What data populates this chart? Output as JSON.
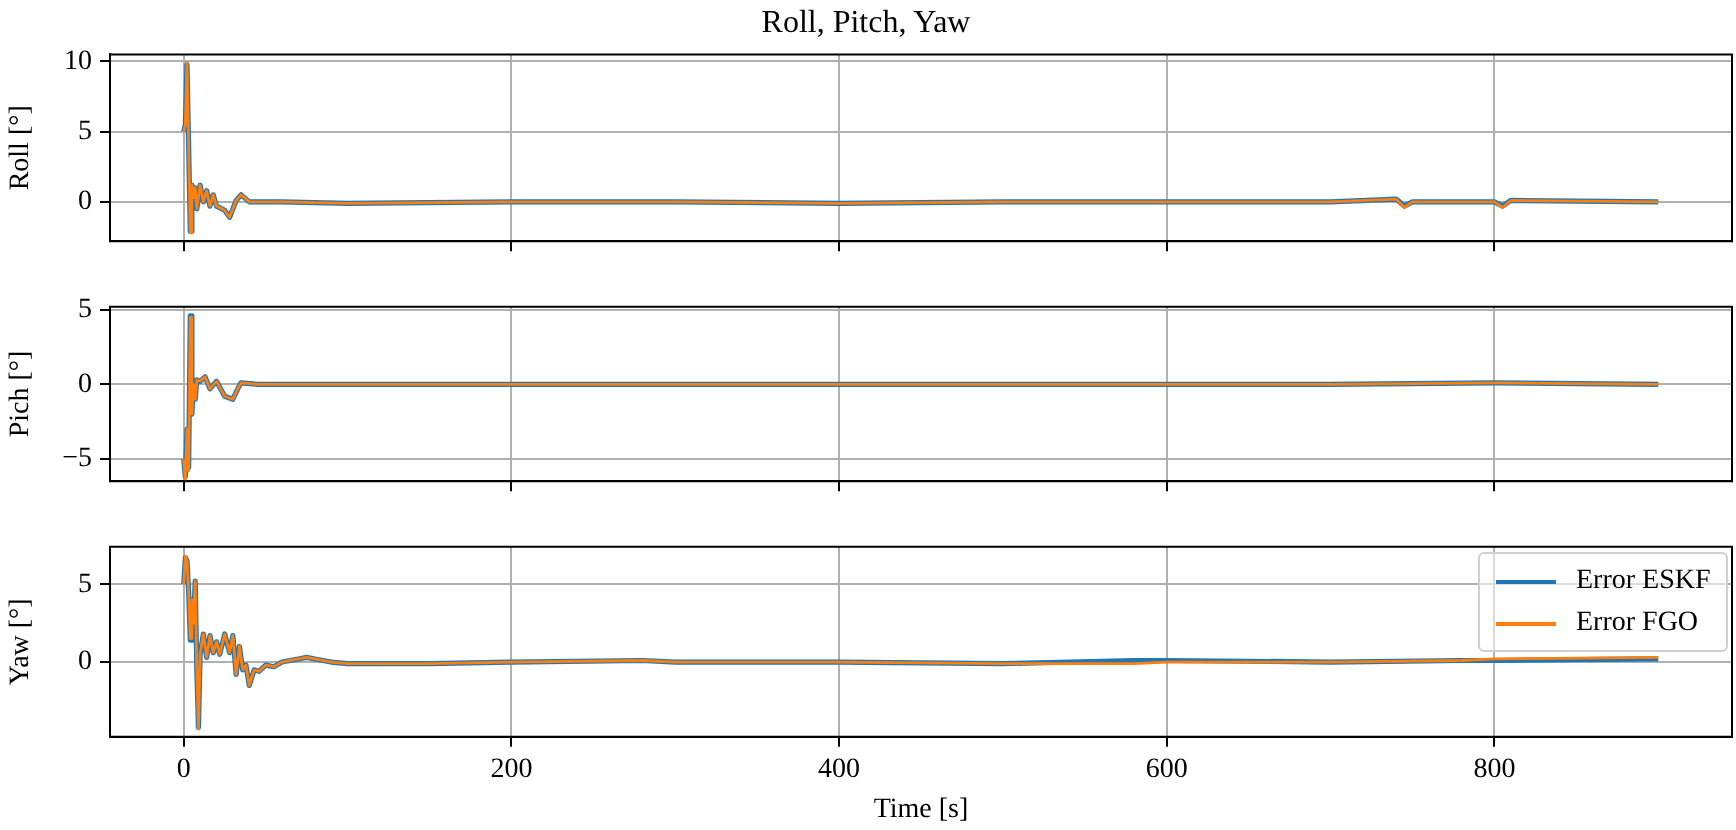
{
  "chart_data": [
    {
      "type": "line",
      "title": "Roll, Pitch, Yaw",
      "ylabel": "Roll [°]",
      "xlim": [
        -45,
        945
      ],
      "xticks": [
        0,
        200,
        400,
        600,
        800
      ],
      "ylim": [
        -2.8,
        10.5
      ],
      "yticks": [
        0,
        5,
        10
      ],
      "grid": true,
      "tick_labels": "y",
      "line_style": "solid",
      "marker": "none",
      "x": [
        0,
        1,
        2,
        3,
        4,
        5,
        6,
        7,
        8,
        10,
        12,
        14,
        16,
        18,
        20,
        25,
        28,
        32,
        35,
        40,
        60,
        100,
        200,
        300,
        400,
        500,
        600,
        700,
        740,
        745,
        750,
        800,
        805,
        810,
        900
      ],
      "series": [
        {
          "color": "#1f77b4",
          "values": [
            5,
            5.5,
            9.8,
            4,
            -2.1,
            1.2,
            0.3,
            1,
            -0.5,
            1.2,
            0,
            0.8,
            -0.3,
            0.5,
            -0.3,
            -0.6,
            -1.1,
            0.1,
            0.5,
            0,
            0,
            -0.1,
            0,
            0,
            -0.1,
            0,
            0,
            0,
            0.2,
            -0.3,
            0,
            0,
            -0.3,
            0.1,
            0
          ]
        },
        {
          "color": "#ff7f0e",
          "values": [
            5,
            5.5,
            9.9,
            4,
            -2.2,
            1.2,
            0.3,
            1,
            -0.5,
            1.2,
            0,
            0.8,
            -0.3,
            0.5,
            -0.3,
            -0.6,
            -1.1,
            0.1,
            0.5,
            0,
            0,
            -0.1,
            0,
            0,
            -0.1,
            0,
            0,
            0,
            0.2,
            -0.4,
            0,
            0,
            -0.4,
            0.1,
            0
          ]
        }
      ]
    },
    {
      "type": "line",
      "ylabel": "Pich [°]",
      "xlim": [
        -45,
        945
      ],
      "xticks": [
        0,
        200,
        400,
        600,
        800
      ],
      "ylim": [
        -6.5,
        5.2
      ],
      "yticks": [
        {
          "value": -5,
          "label": "−5"
        },
        0,
        5
      ],
      "grid": true,
      "tick_labels": "y",
      "line_style": "solid",
      "marker": "none",
      "x": [
        0,
        1,
        2,
        3,
        4,
        5,
        6,
        7,
        8,
        10,
        13,
        16,
        20,
        25,
        30,
        33,
        35,
        45,
        100,
        200,
        300,
        400,
        500,
        600,
        700,
        800,
        900
      ],
      "series": [
        {
          "color": "#1f77b4",
          "values": [
            -5,
            -6.2,
            -3,
            -5.6,
            4.6,
            -2,
            0,
            -1,
            0.3,
            0.2,
            0.5,
            -0.3,
            0.2,
            -0.8,
            -1,
            -0.3,
            0.1,
            0,
            0,
            0,
            0,
            0,
            0,
            0,
            0,
            0.1,
            0
          ]
        },
        {
          "color": "#ff7f0e",
          "values": [
            -5,
            -6.5,
            -3,
            -5.8,
            4.5,
            -2,
            0,
            -1,
            0.3,
            0.2,
            0.5,
            -0.3,
            0.2,
            -0.8,
            -1,
            -0.3,
            0.1,
            0,
            0,
            0,
            0,
            0,
            0,
            0,
            0,
            0.1,
            0
          ]
        }
      ]
    },
    {
      "type": "line",
      "ylabel": "Yaw [°]",
      "xlabel": "Time [s]",
      "xlim": [
        -45,
        945
      ],
      "xticks": [
        0,
        200,
        400,
        600,
        800
      ],
      "ylim": [
        -4.8,
        7.4
      ],
      "yticks": [
        0,
        5
      ],
      "grid": true,
      "legend": "right",
      "line_style": "solid",
      "marker": "none",
      "x": [
        0,
        1,
        2,
        3,
        4,
        5,
        6,
        7,
        8,
        9,
        10,
        12,
        14,
        16,
        18,
        20,
        22,
        25,
        28,
        30,
        32,
        34,
        36,
        38,
        40,
        43,
        46,
        50,
        55,
        60,
        65,
        70,
        75,
        80,
        90,
        100,
        150,
        200,
        280,
        300,
        400,
        500,
        580,
        600,
        700,
        780,
        800,
        900
      ],
      "series": [
        {
          "name": "Error ESKF",
          "color": "#1f77b4",
          "values": [
            5,
            6.7,
            6.5,
            4.5,
            1.4,
            4,
            2.5,
            5.2,
            -0.5,
            -4.2,
            0.5,
            1.8,
            0.3,
            1.7,
            0.6,
            1.3,
            0.5,
            1.8,
            0.6,
            1.7,
            -0.8,
            1,
            -0.5,
            -0.2,
            -1.5,
            -0.5,
            -0.6,
            -0.2,
            -0.3,
            0,
            0.1,
            0.2,
            0.3,
            0.2,
            0,
            -0.1,
            -0.1,
            0,
            0.1,
            0,
            0,
            -0.1,
            0.1,
            0.1,
            0,
            0.1,
            0.1,
            0.2
          ]
        },
        {
          "name": "Error FGO",
          "color": "#ff7f0e",
          "values": [
            5,
            6.8,
            6.5,
            4.5,
            1.5,
            4,
            2.5,
            5.2,
            -0.5,
            -4.3,
            0.5,
            1.8,
            0.3,
            1.7,
            0.6,
            1.3,
            0.5,
            1.8,
            0.6,
            1.7,
            -0.8,
            1,
            -0.5,
            -0.2,
            -1.5,
            -0.5,
            -0.6,
            -0.2,
            -0.3,
            0,
            0.1,
            0.2,
            0.3,
            0.2,
            0,
            -0.1,
            -0.1,
            0,
            0.1,
            0,
            0,
            -0.1,
            -0.1,
            0,
            0,
            0.1,
            0.2,
            0.3
          ]
        }
      ]
    }
  ]
}
